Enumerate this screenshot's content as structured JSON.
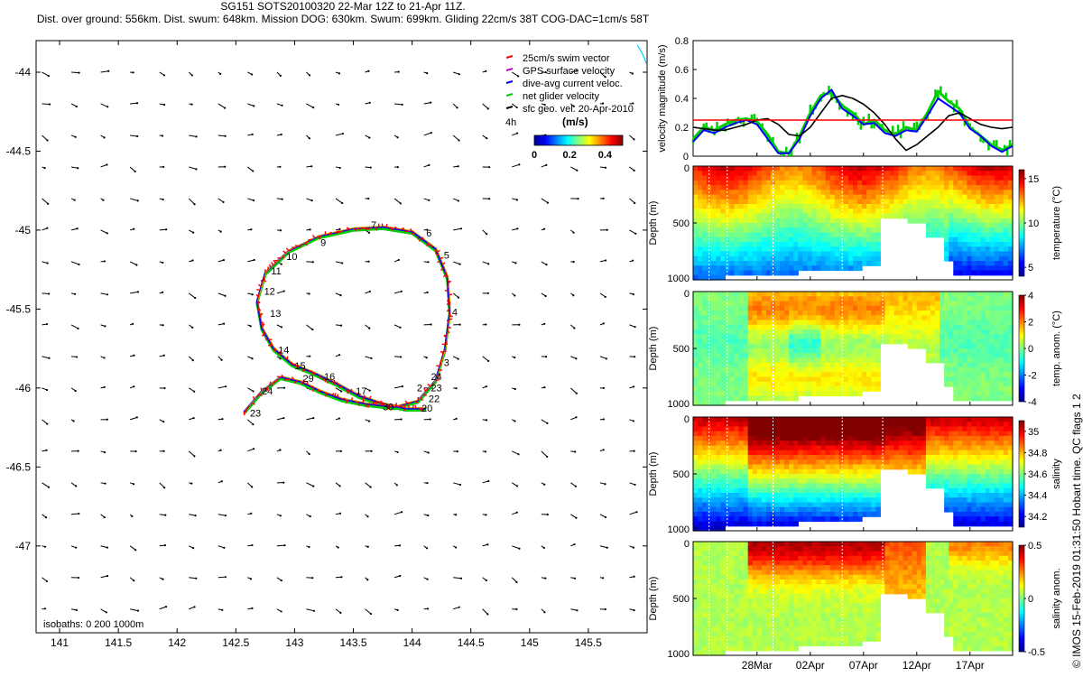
{
  "header": {
    "line1": "SG151 SOTS20100320 22-Mar 12Z to 21-Apr 11Z.",
    "line2": "Dist. over ground: 556km. Dist. swum: 648km. Mission DOG: 630km. Swum: 699km. Gliding 22cm/s 38T COG-DAC=1cm/s 58T"
  },
  "credit": "© IMOS 15-Feb-2019 01:31:50 Hobart time. QC flags 1  2",
  "colors": {
    "swim": "#ff0000",
    "gps": "#c800c8",
    "dac": "#0000ff",
    "net": "#00d000",
    "geo": "#000000",
    "thresh": "#ff0000"
  },
  "chart_data": [
    {
      "id": "map",
      "type": "scatter",
      "xlim": [
        140.8,
        146.0
      ],
      "ylim": [
        -47.55,
        -43.8
      ],
      "xticks": [
        141,
        141.5,
        142,
        142.5,
        143,
        143.5,
        144,
        144.5,
        145,
        145.5
      ],
      "yticks": [
        -44,
        -44.5,
        -45,
        -45.5,
        -46,
        -46.5,
        -47
      ],
      "xticklabels": [
        "141",
        "141.5",
        "142",
        "142.5",
        "143",
        "143.5",
        "144",
        "144.5",
        "145",
        "145.5"
      ],
      "yticklabels": [
        "-44",
        "-44.5",
        "-45",
        "-45.5",
        "-46",
        "-46.5",
        "-47"
      ],
      "legend": {
        "placement": "top-right",
        "entries": [
          "25cm/s swim vector",
          "GPS surface velocity",
          "dive-avg current veloc.",
          "net glider velocity",
          "sfc geo. vel. 20-Apr-2010"
        ]
      },
      "colorbar": {
        "label": "(m/s)",
        "ticklabels": [
          "0",
          "0.2",
          "0.4"
        ],
        "range": [
          0,
          0.5
        ],
        "side_label": "4h"
      },
      "isobath_label": "isobaths: 0   200  1000m",
      "track": [
        [
          142.57,
          -46.15
        ],
        [
          142.72,
          -46.02
        ],
        [
          142.88,
          -45.93
        ],
        [
          143.05,
          -45.96
        ],
        [
          143.22,
          -46.02
        ],
        [
          143.4,
          -46.07
        ],
        [
          143.6,
          -46.1
        ],
        [
          143.85,
          -46.12
        ],
        [
          144.05,
          -46.08
        ],
        [
          144.2,
          -45.95
        ],
        [
          144.28,
          -45.75
        ],
        [
          144.32,
          -45.52
        ],
        [
          144.3,
          -45.3
        ],
        [
          144.2,
          -45.12
        ],
        [
          144.0,
          -45.01
        ],
        [
          143.75,
          -44.98
        ],
        [
          143.5,
          -44.99
        ],
        [
          143.2,
          -45.04
        ],
        [
          142.95,
          -45.13
        ],
        [
          142.75,
          -45.27
        ],
        [
          142.68,
          -45.45
        ],
        [
          142.72,
          -45.62
        ],
        [
          142.82,
          -45.75
        ],
        [
          142.98,
          -45.85
        ],
        [
          143.15,
          -45.9
        ],
        [
          143.35,
          -45.97
        ],
        [
          143.55,
          -46.05
        ],
        [
          143.75,
          -46.1
        ],
        [
          143.95,
          -46.13
        ],
        [
          144.12,
          -46.13
        ]
      ],
      "day_labels": [
        {
          "t": "2",
          "x": 144.04,
          "y": -46.02
        },
        {
          "t": "3",
          "x": 144.27,
          "y": -45.86
        },
        {
          "t": "4",
          "x": 144.34,
          "y": -45.54
        },
        {
          "t": "5",
          "x": 144.27,
          "y": -45.18
        },
        {
          "t": "6",
          "x": 144.12,
          "y": -45.04
        },
        {
          "t": "7",
          "x": 143.65,
          "y": -44.99
        },
        {
          "t": "9",
          "x": 143.22,
          "y": -45.1
        },
        {
          "t": "10",
          "x": 142.93,
          "y": -45.19
        },
        {
          "t": "11",
          "x": 142.8,
          "y": -45.28
        },
        {
          "t": "12",
          "x": 142.74,
          "y": -45.41
        },
        {
          "t": "13",
          "x": 142.79,
          "y": -45.55
        },
        {
          "t": "14",
          "x": 142.86,
          "y": -45.78
        },
        {
          "t": "15",
          "x": 143.0,
          "y": -45.88
        },
        {
          "t": "16",
          "x": 143.25,
          "y": -45.95
        },
        {
          "t": "17",
          "x": 143.52,
          "y": -46.04
        },
        {
          "t": "20",
          "x": 144.08,
          "y": -46.15
        },
        {
          "t": "22",
          "x": 144.14,
          "y": -46.09
        },
        {
          "t": "23",
          "x": 144.16,
          "y": -46.02
        },
        {
          "t": "24",
          "x": 144.16,
          "y": -45.95
        },
        {
          "t": "23",
          "x": 142.62,
          "y": -46.18
        },
        {
          "t": "24",
          "x": 142.72,
          "y": -46.04
        },
        {
          "t": "29",
          "x": 143.07,
          "y": -45.96
        },
        {
          "t": "30",
          "x": 143.75,
          "y": -46.14
        }
      ]
    },
    {
      "id": "velocity",
      "type": "line",
      "ylabel": "velocity magnitude (m/s)",
      "ylim": [
        0,
        0.8
      ],
      "yticks": [
        0,
        0.2,
        0.4,
        0.6,
        0.8
      ],
      "yticklabels": [
        "0",
        "0.2",
        "0.4",
        "0.6",
        "0.8"
      ],
      "threshold": 0.25,
      "x": [
        0,
        1,
        2,
        3,
        4,
        5,
        6,
        7,
        8,
        9,
        10,
        11,
        12,
        13,
        14,
        15,
        16,
        17,
        18,
        19,
        20,
        21,
        22,
        23,
        24,
        25,
        26,
        27,
        28,
        29,
        30
      ],
      "series": [
        {
          "key": "net",
          "values": [
            0.12,
            0.2,
            0.18,
            0.22,
            0.25,
            0.26,
            0.24,
            0.15,
            0.03,
            0.02,
            0.14,
            0.3,
            0.42,
            0.44,
            0.35,
            0.3,
            0.22,
            0.25,
            0.18,
            0.15,
            0.2,
            0.18,
            0.3,
            0.45,
            0.38,
            0.33,
            0.2,
            0.14,
            0.08,
            0.04,
            0.08
          ]
        },
        {
          "key": "dac",
          "values": [
            0.1,
            0.18,
            0.16,
            0.2,
            0.23,
            0.25,
            0.22,
            0.12,
            0.02,
            0.02,
            0.12,
            0.28,
            0.4,
            0.46,
            0.33,
            0.28,
            0.22,
            0.23,
            0.16,
            0.14,
            0.18,
            0.17,
            0.28,
            0.4,
            0.35,
            0.3,
            0.19,
            0.14,
            0.07,
            0.03,
            0.07
          ]
        },
        {
          "key": "geo",
          "values": [
            0.2,
            0.19,
            0.18,
            0.18,
            0.2,
            0.22,
            0.25,
            0.26,
            0.22,
            0.15,
            0.14,
            0.2,
            0.3,
            0.4,
            0.42,
            0.4,
            0.36,
            0.3,
            0.22,
            0.12,
            0.04,
            0.08,
            0.14,
            0.2,
            0.28,
            0.3,
            0.26,
            0.22,
            0.2,
            0.19,
            0.2
          ]
        }
      ]
    },
    {
      "id": "sections",
      "type": "heatmap",
      "xticks": [
        6,
        11,
        16,
        21,
        26
      ],
      "xticklabels": [
        "28Mar",
        "02Apr",
        "07Apr",
        "12Apr",
        "17Apr"
      ],
      "xlim": [
        0,
        30
      ],
      "ylim": [
        1000,
        0
      ],
      "yticks": [
        0,
        500,
        1000
      ],
      "panels": [
        {
          "ylabel": "Depth (m)",
          "cblabel": "temperature (°C)",
          "ticklabels": [
            "5",
            "10",
            "15"
          ],
          "range": [
            4,
            16
          ],
          "ticks": [
            5,
            10,
            15
          ]
        },
        {
          "ylabel": "Depth (m)",
          "cblabel": "temp. anom. (°C)",
          "ticklabels": [
            "-4",
            "-2",
            "0",
            "2",
            "4"
          ],
          "range": [
            -4,
            4
          ],
          "ticks": [
            -4,
            -2,
            0,
            2,
            4
          ]
        },
        {
          "ylabel": "Depth (m)",
          "cblabel": "salinity",
          "ticklabels": [
            "34.2",
            "34.4",
            "34.6",
            "34.8",
            "35"
          ],
          "range": [
            34.1,
            35.1
          ],
          "ticks": [
            34.2,
            34.4,
            34.6,
            34.8,
            35
          ]
        },
        {
          "ylabel": "Depth (m)",
          "cblabel": "salinity anom.",
          "ticklabels": [
            "-0.5",
            "0",
            "0.5"
          ],
          "range": [
            -0.5,
            0.5
          ],
          "ticks": [
            -0.5,
            0,
            0.5
          ]
        }
      ]
    }
  ]
}
